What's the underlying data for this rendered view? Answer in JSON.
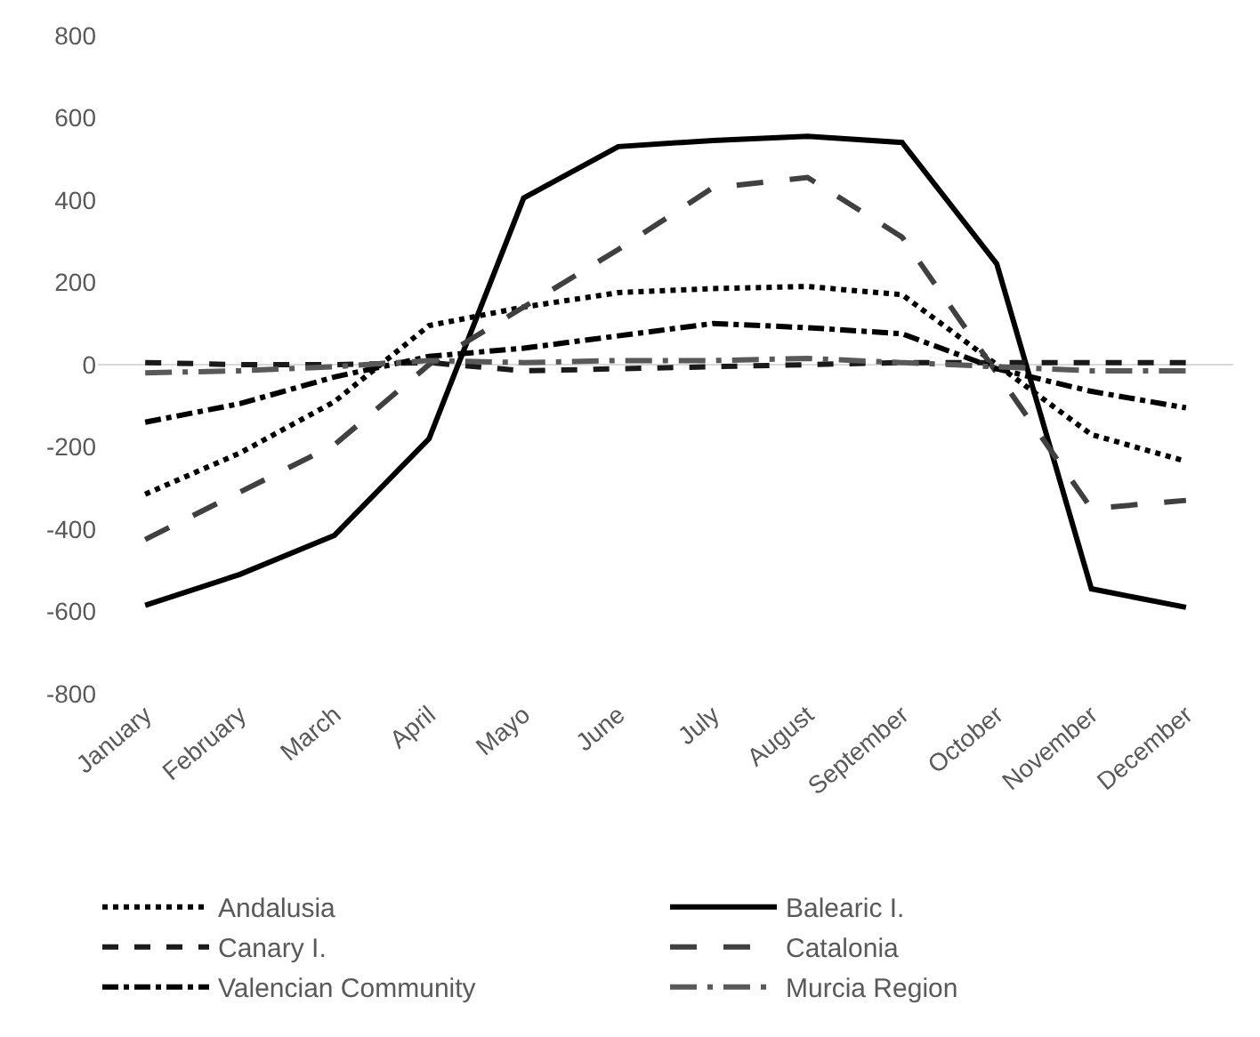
{
  "chart_data": {
    "type": "line",
    "categories": [
      "January",
      "February",
      "March",
      "April",
      "Mayo",
      "June",
      "July",
      "August",
      "September",
      "October",
      "November",
      "December"
    ],
    "series": [
      {
        "name": "Andalusia",
        "color": "#000000",
        "line_style": "dotted",
        "values": [
          -315,
          -215,
          -90,
          95,
          140,
          175,
          185,
          190,
          170,
          0,
          -170,
          -235
        ]
      },
      {
        "name": "Balearic I.",
        "color": "#000000",
        "line_style": "solid",
        "values": [
          -585,
          -510,
          -415,
          -180,
          405,
          530,
          545,
          555,
          540,
          245,
          -545,
          -590
        ]
      },
      {
        "name": "Canary I.",
        "color": "#1a1a1a",
        "line_style": "dashed",
        "values": [
          5,
          0,
          0,
          5,
          -15,
          -10,
          -5,
          0,
          5,
          5,
          5,
          5
        ]
      },
      {
        "name": "Catalonia",
        "color": "#404040",
        "line_style": "longdash",
        "values": [
          -425,
          -310,
          -195,
          0,
          140,
          280,
          430,
          455,
          310,
          -20,
          -350,
          -330
        ]
      },
      {
        "name": "Valencian Community",
        "color": "#000000",
        "line_style": "dashdot",
        "values": [
          -140,
          -95,
          -30,
          20,
          40,
          70,
          100,
          90,
          75,
          -10,
          -65,
          -105
        ]
      },
      {
        "name": "Murcia Region",
        "color": "#595959",
        "line_style": "longdashdot",
        "values": [
          -20,
          -15,
          -5,
          10,
          5,
          10,
          10,
          15,
          5,
          -5,
          -15,
          -15
        ]
      }
    ],
    "ylim": [
      -800,
      800
    ],
    "yticks": [
      -800,
      -600,
      -400,
      -200,
      0,
      200,
      400,
      600,
      800
    ],
    "ref_lines": [
      {
        "axis": "y",
        "value": 0,
        "color": "#d9d9d9"
      }
    ],
    "grid": false,
    "legend": "bottom"
  }
}
